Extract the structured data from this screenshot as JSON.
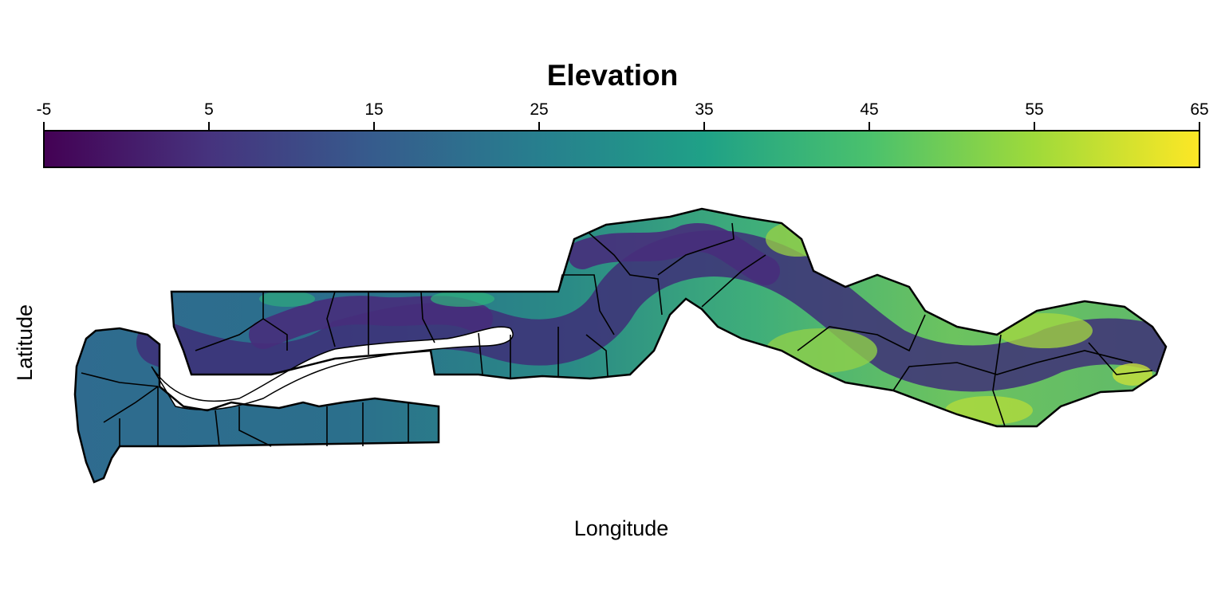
{
  "map": {
    "legend": {
      "title": "Elevation",
      "min": -5,
      "max": 65,
      "ticks": [
        "-5",
        "5",
        "15",
        "25",
        "35",
        "45",
        "55",
        "65"
      ],
      "palette": [
        "#440154",
        "#46337E",
        "#365C8D",
        "#277F8E",
        "#1FA187",
        "#4AC16D",
        "#9FDA3A",
        "#FDE725"
      ]
    },
    "xlabel": "Longitude",
    "ylabel": "Latitude"
  }
}
